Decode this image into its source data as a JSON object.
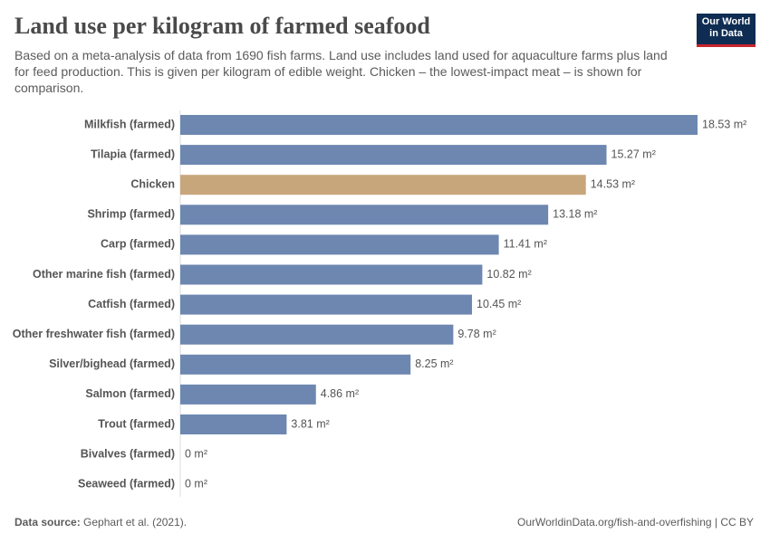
{
  "chart_data": {
    "type": "bar",
    "orientation": "horizontal",
    "title": "Land use per kilogram of farmed seafood",
    "subtitle": "Based on a meta-analysis of data from 1690 fish farms. Land use includes land used for aquaculture farms plus land for feed production. This is given per kilogram of edible weight. Chicken – the lowest-impact meat – is shown for comparison.",
    "categories": [
      "Milkfish (farmed)",
      "Tilapia (farmed)",
      "Chicken",
      "Shrimp (farmed)",
      "Carp (farmed)",
      "Other marine fish (farmed)",
      "Catfish (farmed)",
      "Other freshwater fish (farmed)",
      "Silver/bighead (farmed)",
      "Salmon (farmed)",
      "Trout (farmed)",
      "Bivalves (farmed)",
      "Seaweed (farmed)"
    ],
    "values": [
      18.53,
      15.27,
      14.53,
      13.18,
      11.41,
      10.82,
      10.45,
      9.78,
      8.25,
      4.86,
      3.81,
      0,
      0
    ],
    "value_labels": [
      "18.53 m²",
      "15.27 m²",
      "14.53 m²",
      "13.18 m²",
      "11.41 m²",
      "10.82 m²",
      "10.45 m²",
      "9.78 m²",
      "8.25 m²",
      "4.86 m²",
      "3.81 m²",
      "0 m²",
      "0 m²"
    ],
    "colors": [
      "#6d87b1",
      "#6d87b1",
      "#c8a67b",
      "#6d87b1",
      "#6d87b1",
      "#6d87b1",
      "#6d87b1",
      "#6d87b1",
      "#6d87b1",
      "#6d87b1",
      "#6d87b1",
      "#6d87b1",
      "#6d87b1"
    ],
    "source_label": "Data source:",
    "source": "Gephart et al. (2021).",
    "credit": "OurWorldinData.org/fish-and-overfishing | CC BY",
    "logo": [
      "Our World",
      "in Data"
    ]
  }
}
